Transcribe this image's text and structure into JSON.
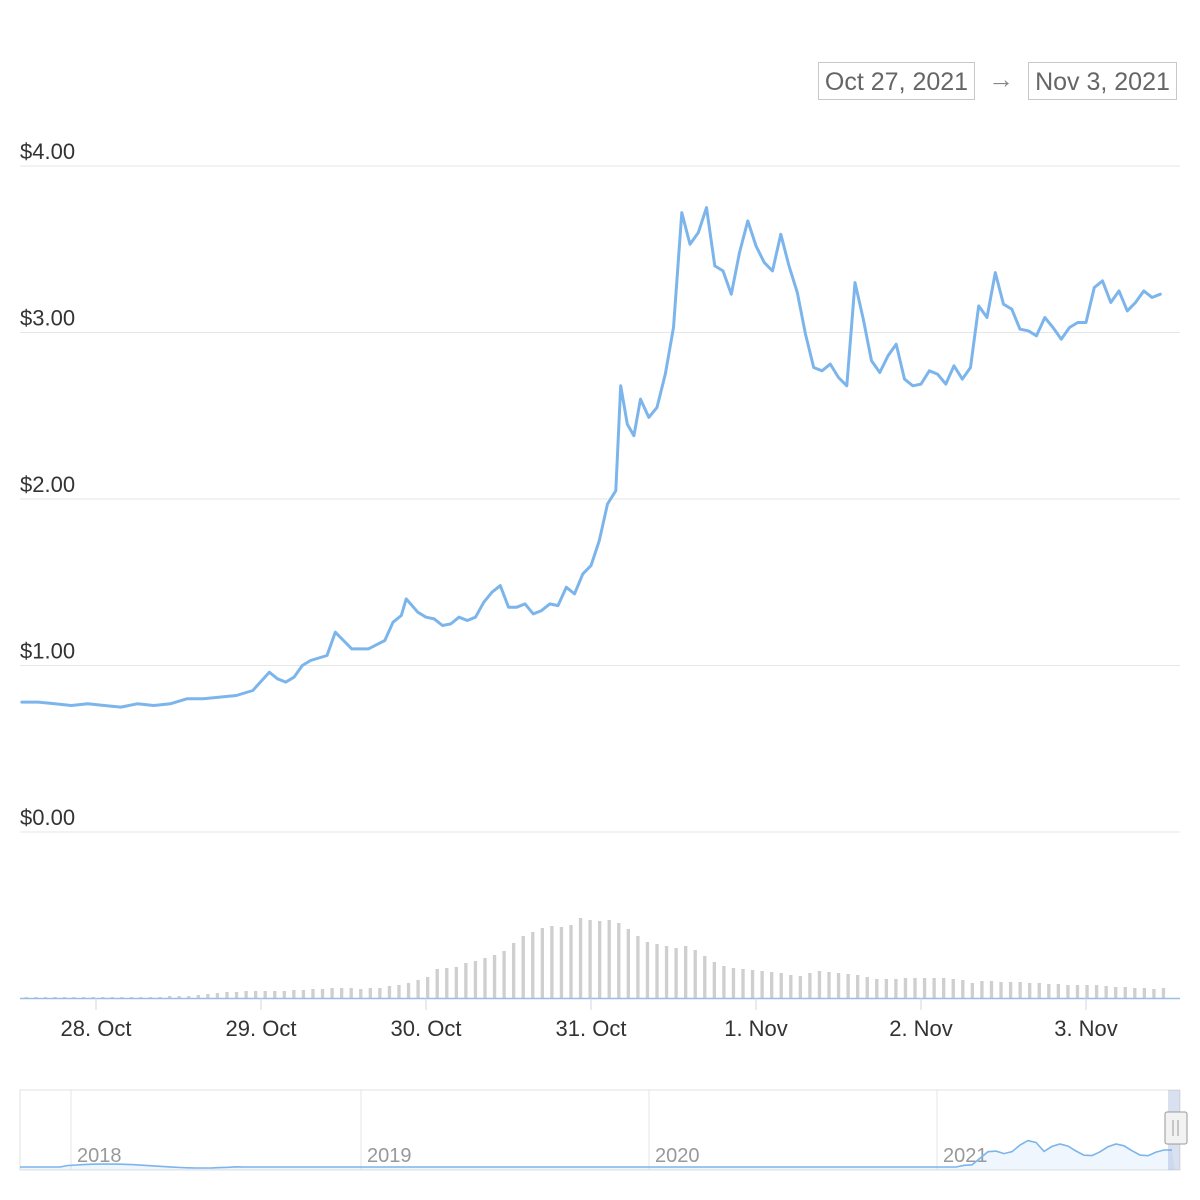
{
  "range_selector": {
    "from": "Oct 27, 2021",
    "arrow": "→",
    "to": "Nov 3, 2021"
  },
  "colors": {
    "line": "#7cb5ec",
    "grid": "#e6e6e6",
    "volume": "#cfcfcf",
    "axis_text": "#333333"
  },
  "chart_data": {
    "type": "line",
    "y_ticks": [
      "$0.00",
      "$1.00",
      "$2.00",
      "$3.00",
      "$4.00"
    ],
    "y_tick_values": [
      0,
      1,
      2,
      3,
      4
    ],
    "ylim": [
      0,
      4
    ],
    "x_ticks": [
      "28. Oct",
      "29. Oct",
      "30. Oct",
      "31. Oct",
      "1. Nov",
      "2. Nov",
      "3. Nov"
    ],
    "xlim_days": [
      -0.45,
      6.5
    ],
    "grid": true,
    "price": [
      [
        -0.45,
        0.78
      ],
      [
        -0.35,
        0.78
      ],
      [
        -0.25,
        0.77
      ],
      [
        -0.15,
        0.76
      ],
      [
        -0.05,
        0.77
      ],
      [
        0.05,
        0.76
      ],
      [
        0.15,
        0.75
      ],
      [
        0.25,
        0.77
      ],
      [
        0.35,
        0.76
      ],
      [
        0.45,
        0.77
      ],
      [
        0.55,
        0.8
      ],
      [
        0.65,
        0.8
      ],
      [
        0.75,
        0.81
      ],
      [
        0.85,
        0.82
      ],
      [
        0.95,
        0.85
      ],
      [
        1.05,
        0.96
      ],
      [
        1.1,
        0.92
      ],
      [
        1.15,
        0.9
      ],
      [
        1.2,
        0.93
      ],
      [
        1.25,
        1.0
      ],
      [
        1.3,
        1.03
      ],
      [
        1.4,
        1.06
      ],
      [
        1.45,
        1.2
      ],
      [
        1.5,
        1.15
      ],
      [
        1.55,
        1.1
      ],
      [
        1.65,
        1.1
      ],
      [
        1.75,
        1.15
      ],
      [
        1.8,
        1.26
      ],
      [
        1.85,
        1.3
      ],
      [
        1.88,
        1.4
      ],
      [
        1.95,
        1.32
      ],
      [
        2.0,
        1.29
      ],
      [
        2.05,
        1.28
      ],
      [
        2.1,
        1.24
      ],
      [
        2.15,
        1.25
      ],
      [
        2.2,
        1.29
      ],
      [
        2.25,
        1.27
      ],
      [
        2.3,
        1.29
      ],
      [
        2.35,
        1.38
      ],
      [
        2.4,
        1.44
      ],
      [
        2.45,
        1.48
      ],
      [
        2.5,
        1.35
      ],
      [
        2.55,
        1.35
      ],
      [
        2.6,
        1.37
      ],
      [
        2.65,
        1.31
      ],
      [
        2.7,
        1.33
      ],
      [
        2.75,
        1.37
      ],
      [
        2.8,
        1.36
      ],
      [
        2.85,
        1.47
      ],
      [
        2.9,
        1.43
      ],
      [
        2.95,
        1.55
      ],
      [
        3.0,
        1.6
      ],
      [
        3.05,
        1.75
      ],
      [
        3.1,
        1.97
      ],
      [
        3.15,
        2.05
      ],
      [
        3.18,
        2.68
      ],
      [
        3.22,
        2.45
      ],
      [
        3.26,
        2.38
      ],
      [
        3.3,
        2.6
      ],
      [
        3.35,
        2.49
      ],
      [
        3.4,
        2.55
      ],
      [
        3.45,
        2.75
      ],
      [
        3.5,
        3.03
      ],
      [
        3.55,
        3.72
      ],
      [
        3.6,
        3.53
      ],
      [
        3.65,
        3.6
      ],
      [
        3.7,
        3.75
      ],
      [
        3.75,
        3.4
      ],
      [
        3.8,
        3.37
      ],
      [
        3.85,
        3.23
      ],
      [
        3.9,
        3.48
      ],
      [
        3.95,
        3.67
      ],
      [
        4.0,
        3.52
      ],
      [
        4.05,
        3.42
      ],
      [
        4.1,
        3.37
      ],
      [
        4.15,
        3.59
      ],
      [
        4.2,
        3.4
      ],
      [
        4.25,
        3.24
      ],
      [
        4.3,
        2.99
      ],
      [
        4.35,
        2.79
      ],
      [
        4.4,
        2.77
      ],
      [
        4.45,
        2.81
      ],
      [
        4.5,
        2.73
      ],
      [
        4.55,
        2.68
      ],
      [
        4.6,
        3.3
      ],
      [
        4.65,
        3.08
      ],
      [
        4.7,
        2.83
      ],
      [
        4.75,
        2.76
      ],
      [
        4.8,
        2.86
      ],
      [
        4.85,
        2.93
      ],
      [
        4.9,
        2.72
      ],
      [
        4.95,
        2.68
      ],
      [
        5.0,
        2.69
      ],
      [
        5.05,
        2.77
      ],
      [
        5.1,
        2.75
      ],
      [
        5.15,
        2.69
      ],
      [
        5.2,
        2.8
      ],
      [
        5.25,
        2.72
      ],
      [
        5.3,
        2.79
      ],
      [
        5.35,
        3.16
      ],
      [
        5.4,
        3.09
      ],
      [
        5.45,
        3.36
      ],
      [
        5.5,
        3.17
      ],
      [
        5.55,
        3.14
      ],
      [
        5.6,
        3.02
      ],
      [
        5.65,
        3.01
      ],
      [
        5.7,
        2.98
      ],
      [
        5.75,
        3.09
      ],
      [
        5.8,
        3.03
      ],
      [
        5.85,
        2.96
      ],
      [
        5.9,
        3.03
      ],
      [
        5.95,
        3.06
      ],
      [
        6.0,
        3.06
      ],
      [
        6.05,
        3.27
      ],
      [
        6.1,
        3.31
      ],
      [
        6.15,
        3.18
      ],
      [
        6.2,
        3.25
      ],
      [
        6.25,
        3.13
      ],
      [
        6.3,
        3.18
      ],
      [
        6.35,
        3.25
      ],
      [
        6.4,
        3.21
      ],
      [
        6.45,
        3.23
      ]
    ],
    "volume": [
      0.01,
      0.01,
      0.01,
      0.01,
      0.01,
      0.01,
      0.01,
      0.01,
      0.01,
      0.01,
      0.01,
      0.01,
      0.01,
      0.01,
      0.01,
      0.02,
      0.02,
      0.02,
      0.03,
      0.04,
      0.05,
      0.06,
      0.06,
      0.07,
      0.07,
      0.07,
      0.07,
      0.07,
      0.08,
      0.08,
      0.09,
      0.09,
      0.1,
      0.1,
      0.1,
      0.09,
      0.1,
      0.1,
      0.12,
      0.13,
      0.15,
      0.18,
      0.21,
      0.29,
      0.3,
      0.31,
      0.35,
      0.37,
      0.4,
      0.43,
      0.47,
      0.55,
      0.62,
      0.66,
      0.7,
      0.72,
      0.71,
      0.73,
      0.8,
      0.78,
      0.77,
      0.78,
      0.75,
      0.69,
      0.62,
      0.56,
      0.54,
      0.52,
      0.5,
      0.52,
      0.48,
      0.42,
      0.36,
      0.32,
      0.3,
      0.29,
      0.28,
      0.27,
      0.26,
      0.25,
      0.23,
      0.22,
      0.25,
      0.27,
      0.26,
      0.25,
      0.24,
      0.23,
      0.21,
      0.19,
      0.19,
      0.19,
      0.2,
      0.2,
      0.2,
      0.2,
      0.2,
      0.19,
      0.18,
      0.15,
      0.17,
      0.17,
      0.16,
      0.16,
      0.16,
      0.15,
      0.15,
      0.14,
      0.14,
      0.13,
      0.13,
      0.13,
      0.13,
      0.12,
      0.11,
      0.11,
      0.1,
      0.1,
      0.09,
      0.1
    ],
    "navigator": {
      "labels": [
        "2018",
        "2019",
        "2020",
        "2021"
      ]
    }
  }
}
